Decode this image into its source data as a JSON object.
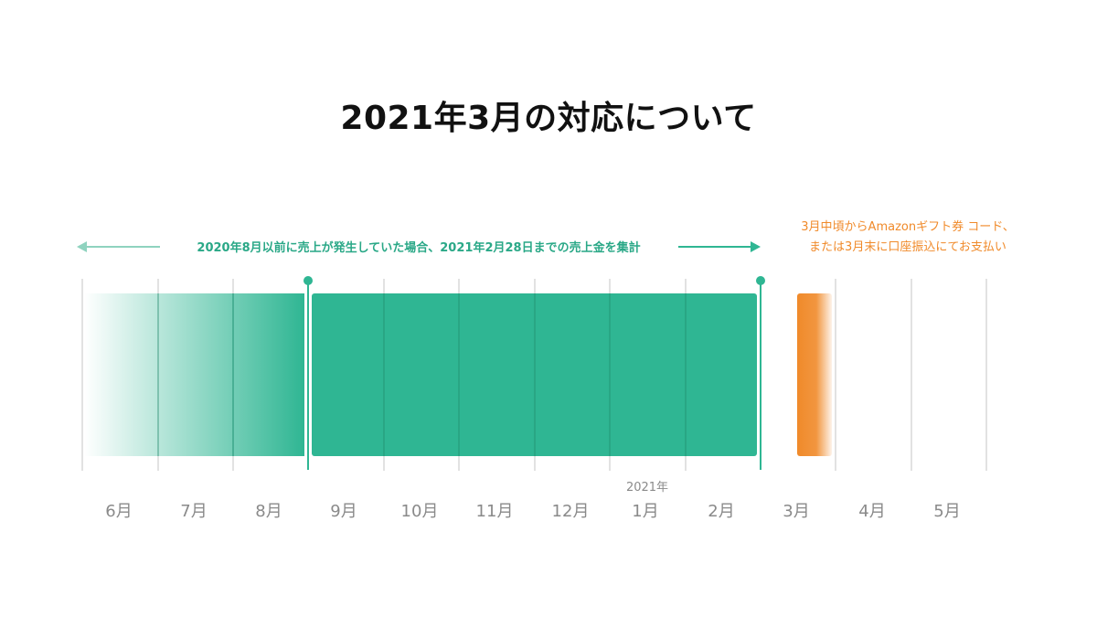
{
  "title": "2021年3月の対応について",
  "colors": {
    "green": "#2fb693",
    "green_dark": "#2aa887",
    "orange": "#f08a2a",
    "grid": "#e2e2e2",
    "grid_on_bar": "#249978",
    "month_label": "#8a8a8a",
    "title": "#111111"
  },
  "aggregation_note": "2020年8月以前に売上が発生していた場合、2021年2月28日までの売上金を集計",
  "payment_note": {
    "line1": "3月中頃からAmazonギフト券 コード、",
    "line2": "または3月末に口座振込にてお支払い"
  },
  "year_label": "2021年",
  "months": [
    "6月",
    "7月",
    "8月",
    "9月",
    "10月",
    "11月",
    "12月",
    "1月",
    "2月",
    "3月",
    "4月",
    "5月"
  ]
}
